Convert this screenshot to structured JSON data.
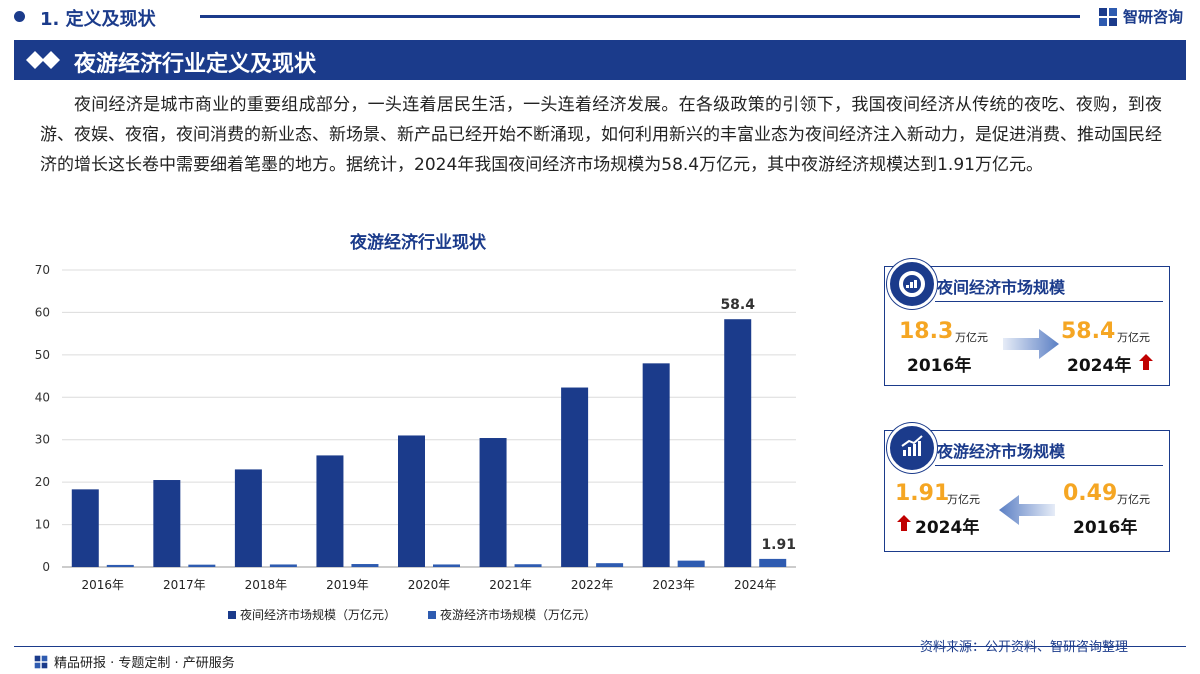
{
  "section": {
    "title": "1. 定义及现状"
  },
  "brand": {
    "name": "智研咨询"
  },
  "banner": {
    "title": "夜游经济行业定义及现状"
  },
  "intro": {
    "text": "夜间经济是城市商业的重要组成部分，一头连着居民生活，一头连着经济发展。在各级政策的引领下，我国夜间经济从传统的夜吃、夜购，到夜游、夜娱、夜宿，夜间消费的新业态、新场景、新产品已经开始不断涌现，如何利用新兴的丰富业态为夜间经济注入新动力，是促进消费、推动国民经济的增长这长卷中需要细着笔墨的地方。据统计，2024年我国夜间经济市场规模为58.4万亿元，其中夜游经济规模达到1.91万亿元。"
  },
  "chart_data": {
    "type": "bar",
    "title": "夜游经济行业现状",
    "categories": [
      "2016年",
      "2017年",
      "2018年",
      "2019年",
      "2020年",
      "2021年",
      "2022年",
      "2023年",
      "2024年"
    ],
    "series": [
      {
        "name": "夜间经济市场规模（万亿元）",
        "values": [
          18.3,
          20.5,
          23.0,
          26.3,
          31.0,
          30.4,
          42.3,
          48.0,
          58.4
        ],
        "color": "#1b3b8b"
      },
      {
        "name": "夜游经济市场规模（万亿元）",
        "values": [
          0.49,
          0.55,
          0.6,
          0.7,
          0.6,
          0.65,
          0.9,
          1.5,
          1.91
        ],
        "color": "#2e5bb0"
      }
    ],
    "data_labels": [
      {
        "series": 0,
        "index": 8,
        "text": "58.4"
      },
      {
        "series": 1,
        "index": 8,
        "text": "1.91"
      }
    ],
    "ylim": [
      0,
      70
    ],
    "yticks": [
      0,
      10,
      20,
      30,
      40,
      50,
      60,
      70
    ],
    "grid": true,
    "legend": "bottom"
  },
  "card1": {
    "title": "夜间经济市场规模",
    "left_value": "18.3",
    "left_unit": "万亿元",
    "left_year": "2016年",
    "right_value": "58.4",
    "right_unit": "万亿元",
    "right_year": "2024年"
  },
  "card2": {
    "title": "夜游经济市场规模",
    "left_value": "1.91",
    "left_unit": "万亿元",
    "left_year": "2024年",
    "right_value": "0.49",
    "right_unit": "万亿元",
    "right_year": "2016年"
  },
  "footer": {
    "tagline": "精品研报 · 专题定制 · 产研服务",
    "source": "资料来源：公开资料、智研咨询整理"
  },
  "colors": {
    "primary": "#1b3b8b",
    "accent": "#f5a623",
    "up": "#c00000"
  }
}
